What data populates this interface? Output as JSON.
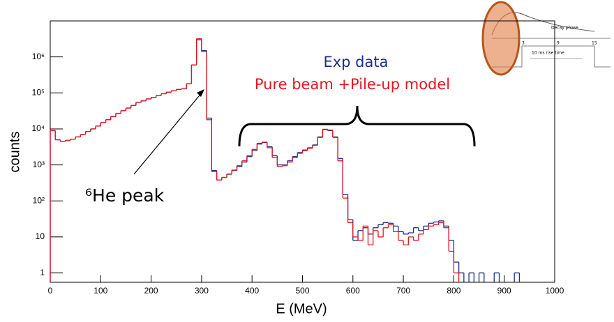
{
  "chart_data": {
    "type": "histogram",
    "xlabel": "E (MeV)",
    "ylabel": "counts",
    "yscale": "log",
    "xlim": [
      0,
      1000
    ],
    "ylim": [
      0.55,
      10000000
    ],
    "xticks": [
      0,
      100,
      200,
      300,
      400,
      500,
      600,
      700,
      800,
      900,
      1000
    ],
    "yticks": [
      1,
      10,
      {
        "value": 100,
        "label": "10²"
      },
      {
        "value": 1000,
        "label": "10³"
      },
      {
        "value": 10000,
        "label": "10⁴"
      },
      {
        "value": 100000,
        "label": "10⁵"
      },
      {
        "value": 1000000,
        "label": "10⁶"
      }
    ],
    "bins": [
      0,
      10,
      20,
      30,
      40,
      50,
      60,
      70,
      80,
      90,
      100,
      110,
      120,
      130,
      140,
      150,
      160,
      170,
      180,
      190,
      200,
      210,
      220,
      230,
      240,
      250,
      260,
      270,
      280,
      290,
      300,
      310,
      320,
      330,
      340,
      350,
      360,
      370,
      380,
      390,
      400,
      410,
      420,
      430,
      440,
      450,
      460,
      470,
      480,
      490,
      500,
      510,
      520,
      530,
      540,
      550,
      560,
      570,
      580,
      590,
      600,
      610,
      620,
      630,
      640,
      650,
      660,
      670,
      680,
      690,
      700,
      710,
      720,
      730,
      740,
      750,
      760,
      770,
      780,
      790,
      800,
      810,
      820,
      830,
      840,
      850,
      860,
      870,
      880,
      890,
      900,
      910,
      920,
      930,
      940,
      950,
      960,
      970,
      980,
      990,
      1000
    ],
    "series": [
      {
        "name": "Exp data",
        "color": "#1c2f8a",
        "values": [
          9000,
          5000,
          4500,
          4800,
          5200,
          6000,
          7000,
          8500,
          10000,
          12000,
          15000,
          18000,
          22000,
          27000,
          32000,
          38000,
          45000,
          55000,
          60000,
          68000,
          75000,
          85000,
          95000,
          105000,
          115000,
          125000,
          130000,
          180000,
          600000,
          3000000,
          1500000,
          20000,
          700,
          380,
          450,
          550,
          700,
          900,
          1200,
          1700,
          2500,
          3800,
          4200,
          3200,
          1800,
          1000,
          1000,
          1300,
          1700,
          2200,
          2600,
          3000,
          3600,
          6000,
          9500,
          9000,
          6000,
          1500,
          150,
          30,
          8,
          15,
          18,
          12,
          18,
          22,
          25,
          24,
          20,
          14,
          12,
          13,
          18,
          15,
          20,
          24,
          26,
          28,
          20,
          8,
          2,
          1,
          null,
          1,
          null,
          1,
          null,
          null,
          1,
          null,
          null,
          null,
          1,
          null,
          null,
          null,
          null,
          null,
          null,
          null
        ]
      },
      {
        "name": "Pure beam +Pile-up model",
        "color": "#e8141c",
        "values": [
          9000,
          5000,
          4500,
          4800,
          5200,
          6000,
          7000,
          8500,
          10000,
          12000,
          15000,
          18000,
          22000,
          27000,
          32000,
          38000,
          45000,
          55000,
          60000,
          68000,
          75000,
          85000,
          95000,
          105000,
          115000,
          125000,
          130000,
          180000,
          600000,
          3200000,
          1400000,
          18000,
          650,
          380,
          450,
          560,
          720,
          950,
          1300,
          1800,
          2700,
          4000,
          4300,
          3000,
          1600,
          900,
          950,
          1200,
          1600,
          2100,
          2500,
          2900,
          3500,
          5800,
          9800,
          9300,
          5800,
          1300,
          120,
          25,
          10,
          8,
          20,
          6,
          15,
          10,
          18,
          22,
          14,
          8,
          6,
          10,
          8,
          12,
          16,
          20,
          22,
          25,
          18,
          4,
          1,
          null,
          null,
          null,
          null,
          null,
          null,
          null,
          null,
          null,
          null,
          null,
          null,
          null,
          null,
          null,
          null,
          null,
          null,
          null
        ]
      }
    ],
    "annotation": "⁶He peak",
    "inset": {
      "phase": "Decay phase",
      "rise": "10 ms rise time",
      "ticks": [
        "3",
        "9",
        "15"
      ]
    }
  }
}
